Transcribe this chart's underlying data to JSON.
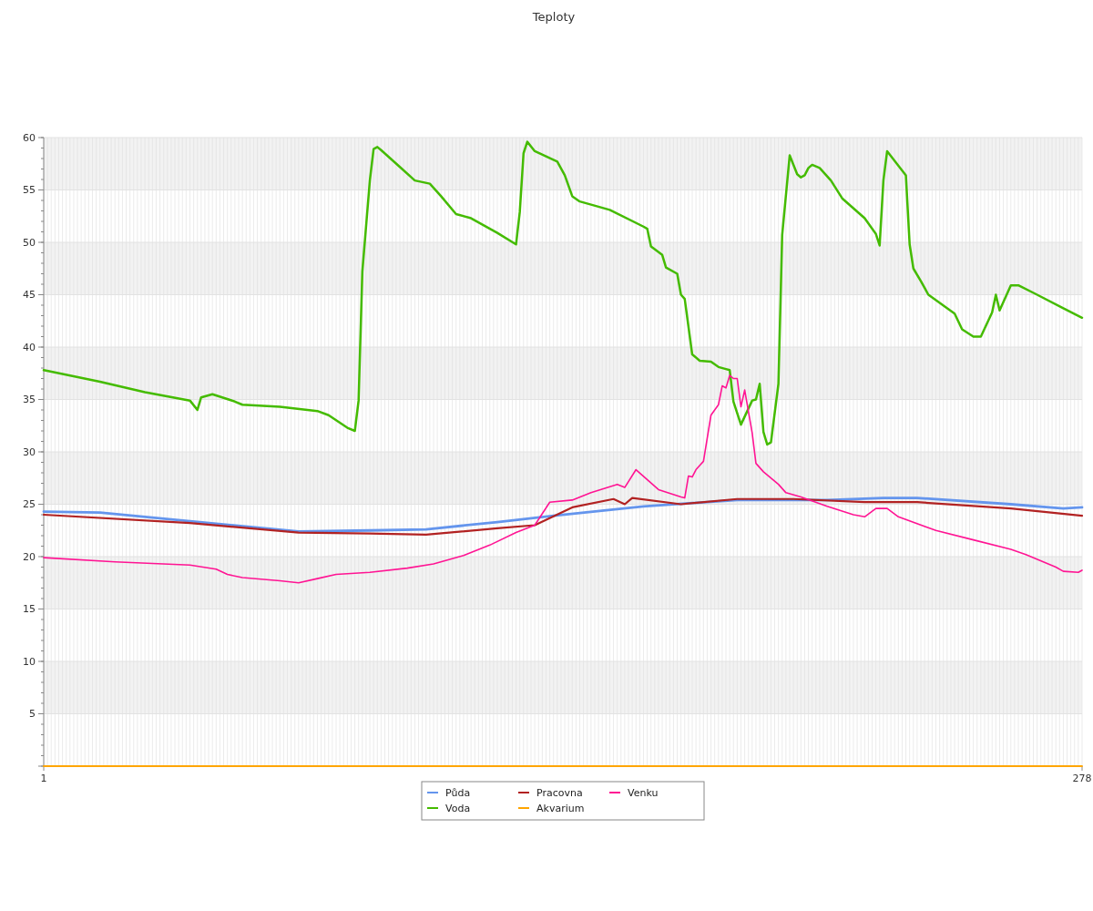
{
  "chart_data": {
    "type": "line",
    "title": "Teploty",
    "xlim": [
      1,
      278
    ],
    "xticks": [
      1,
      278
    ],
    "ylim": [
      0,
      60
    ],
    "yticks": [
      {
        "value": 0,
        "label": null
      },
      5,
      10,
      15,
      20,
      25,
      30,
      35,
      40,
      45,
      50,
      55,
      60
    ],
    "grid": true,
    "legend": "bottom",
    "marker": "none",
    "line_style": "solid",
    "series": [
      {
        "name": "Půda",
        "color": "#6495ed",
        "x": [
          1,
          16,
          69,
          88,
          103,
          122,
          137,
          161,
          186,
          210,
          225,
          234,
          259,
          273,
          278
        ],
        "values": [
          24.3,
          24.2,
          22.4,
          22.5,
          22.6,
          23.3,
          23.9,
          24.8,
          25.4,
          25.4,
          25.6,
          25.6,
          25.0,
          24.6,
          24.7
        ]
      },
      {
        "name": "Voda",
        "color": "#44bb00",
        "x": [
          1,
          16,
          28,
          40,
          42,
          43,
          46,
          52,
          54,
          64,
          74,
          77,
          82,
          84,
          85,
          86,
          88,
          89,
          90,
          91,
          96,
          100,
          104,
          107,
          111,
          115,
          122,
          127,
          128,
          129,
          130,
          132,
          135,
          138,
          140,
          142,
          144,
          152,
          161,
          162,
          163,
          166,
          167,
          170,
          171,
          172,
          174,
          176,
          179,
          181,
          183,
          184,
          185,
          187,
          190,
          191,
          192,
          193,
          194,
          195,
          197,
          198,
          200,
          202,
          203,
          204,
          205,
          206,
          208,
          211,
          214,
          220,
          223,
          224,
          225,
          226,
          231,
          232,
          233,
          235,
          237,
          244,
          246,
          249,
          251,
          254,
          255,
          256,
          259,
          261,
          266,
          273,
          278
        ],
        "values": [
          37.8,
          36.7,
          35.7,
          34.9,
          34.0,
          35.2,
          35.5,
          34.8,
          34.5,
          34.3,
          33.9,
          33.5,
          32.3,
          32.0,
          34.9,
          47.2,
          55.9,
          58.9,
          59.1,
          58.8,
          57.2,
          55.9,
          55.6,
          54.4,
          52.7,
          52.3,
          50.9,
          49.8,
          52.9,
          58.5,
          59.6,
          58.7,
          58.2,
          57.7,
          56.4,
          54.4,
          53.9,
          53.1,
          51.5,
          51.3,
          49.6,
          48.8,
          47.6,
          47.0,
          45.0,
          44.6,
          39.3,
          38.7,
          38.6,
          38.1,
          37.9,
          37.8,
          34.8,
          32.6,
          34.9,
          35.0,
          36.5,
          31.9,
          30.7,
          30.9,
          36.5,
          50.7,
          58.3,
          56.5,
          56.2,
          56.4,
          57.1,
          57.4,
          57.1,
          55.9,
          54.2,
          52.3,
          50.8,
          49.7,
          55.9,
          58.7,
          56.4,
          49.8,
          47.5,
          46.3,
          45.0,
          43.2,
          41.7,
          41.0,
          41.0,
          43.3,
          45.0,
          43.5,
          45.9,
          45.9,
          45.0,
          43.7,
          42.8
        ]
      },
      {
        "name": "Pracovna",
        "color": "#b22222",
        "x": [
          1,
          40,
          69,
          88,
          103,
          122,
          132,
          142,
          153,
          156,
          158,
          171,
          186,
          201,
          220,
          234,
          259,
          278
        ],
        "values": [
          24.0,
          23.2,
          22.3,
          22.2,
          22.1,
          22.7,
          23.0,
          24.7,
          25.5,
          25.0,
          25.6,
          25.0,
          25.5,
          25.5,
          25.2,
          25.2,
          24.6,
          23.9
        ]
      },
      {
        "name": "Akvarium",
        "color": "#ffa500",
        "x": [
          1,
          278
        ],
        "values": [
          0,
          0
        ]
      },
      {
        "name": "Venku",
        "color": "#ff1493",
        "x": [
          1,
          20,
          40,
          47,
          50,
          54,
          64,
          69,
          74,
          79,
          88,
          98,
          105,
          113,
          120,
          127,
          132,
          136,
          142,
          147,
          154,
          156,
          159,
          165,
          171,
          172,
          173,
          174,
          175,
          177,
          179,
          181,
          182,
          183,
          184,
          185,
          186,
          187,
          188,
          190,
          191,
          193,
          197,
          199,
          203,
          210,
          217,
          220,
          223,
          226,
          229,
          239,
          249,
          259,
          263,
          271,
          273,
          277,
          278
        ],
        "values": [
          19.9,
          19.5,
          19.2,
          18.8,
          18.3,
          18.0,
          17.7,
          17.5,
          17.9,
          18.3,
          18.5,
          18.9,
          19.3,
          20.1,
          21.1,
          22.3,
          23.0,
          25.2,
          25.4,
          26.1,
          26.9,
          26.6,
          28.3,
          26.4,
          25.7,
          25.6,
          27.7,
          27.6,
          28.3,
          29.1,
          33.5,
          34.5,
          36.3,
          36.1,
          37.3,
          37.0,
          37.0,
          34.3,
          35.9,
          31.8,
          28.9,
          28.1,
          26.9,
          26.1,
          25.7,
          24.8,
          24.0,
          23.8,
          24.6,
          24.6,
          23.8,
          22.5,
          21.6,
          20.7,
          20.2,
          19.0,
          18.6,
          18.5,
          18.7
        ]
      }
    ]
  }
}
